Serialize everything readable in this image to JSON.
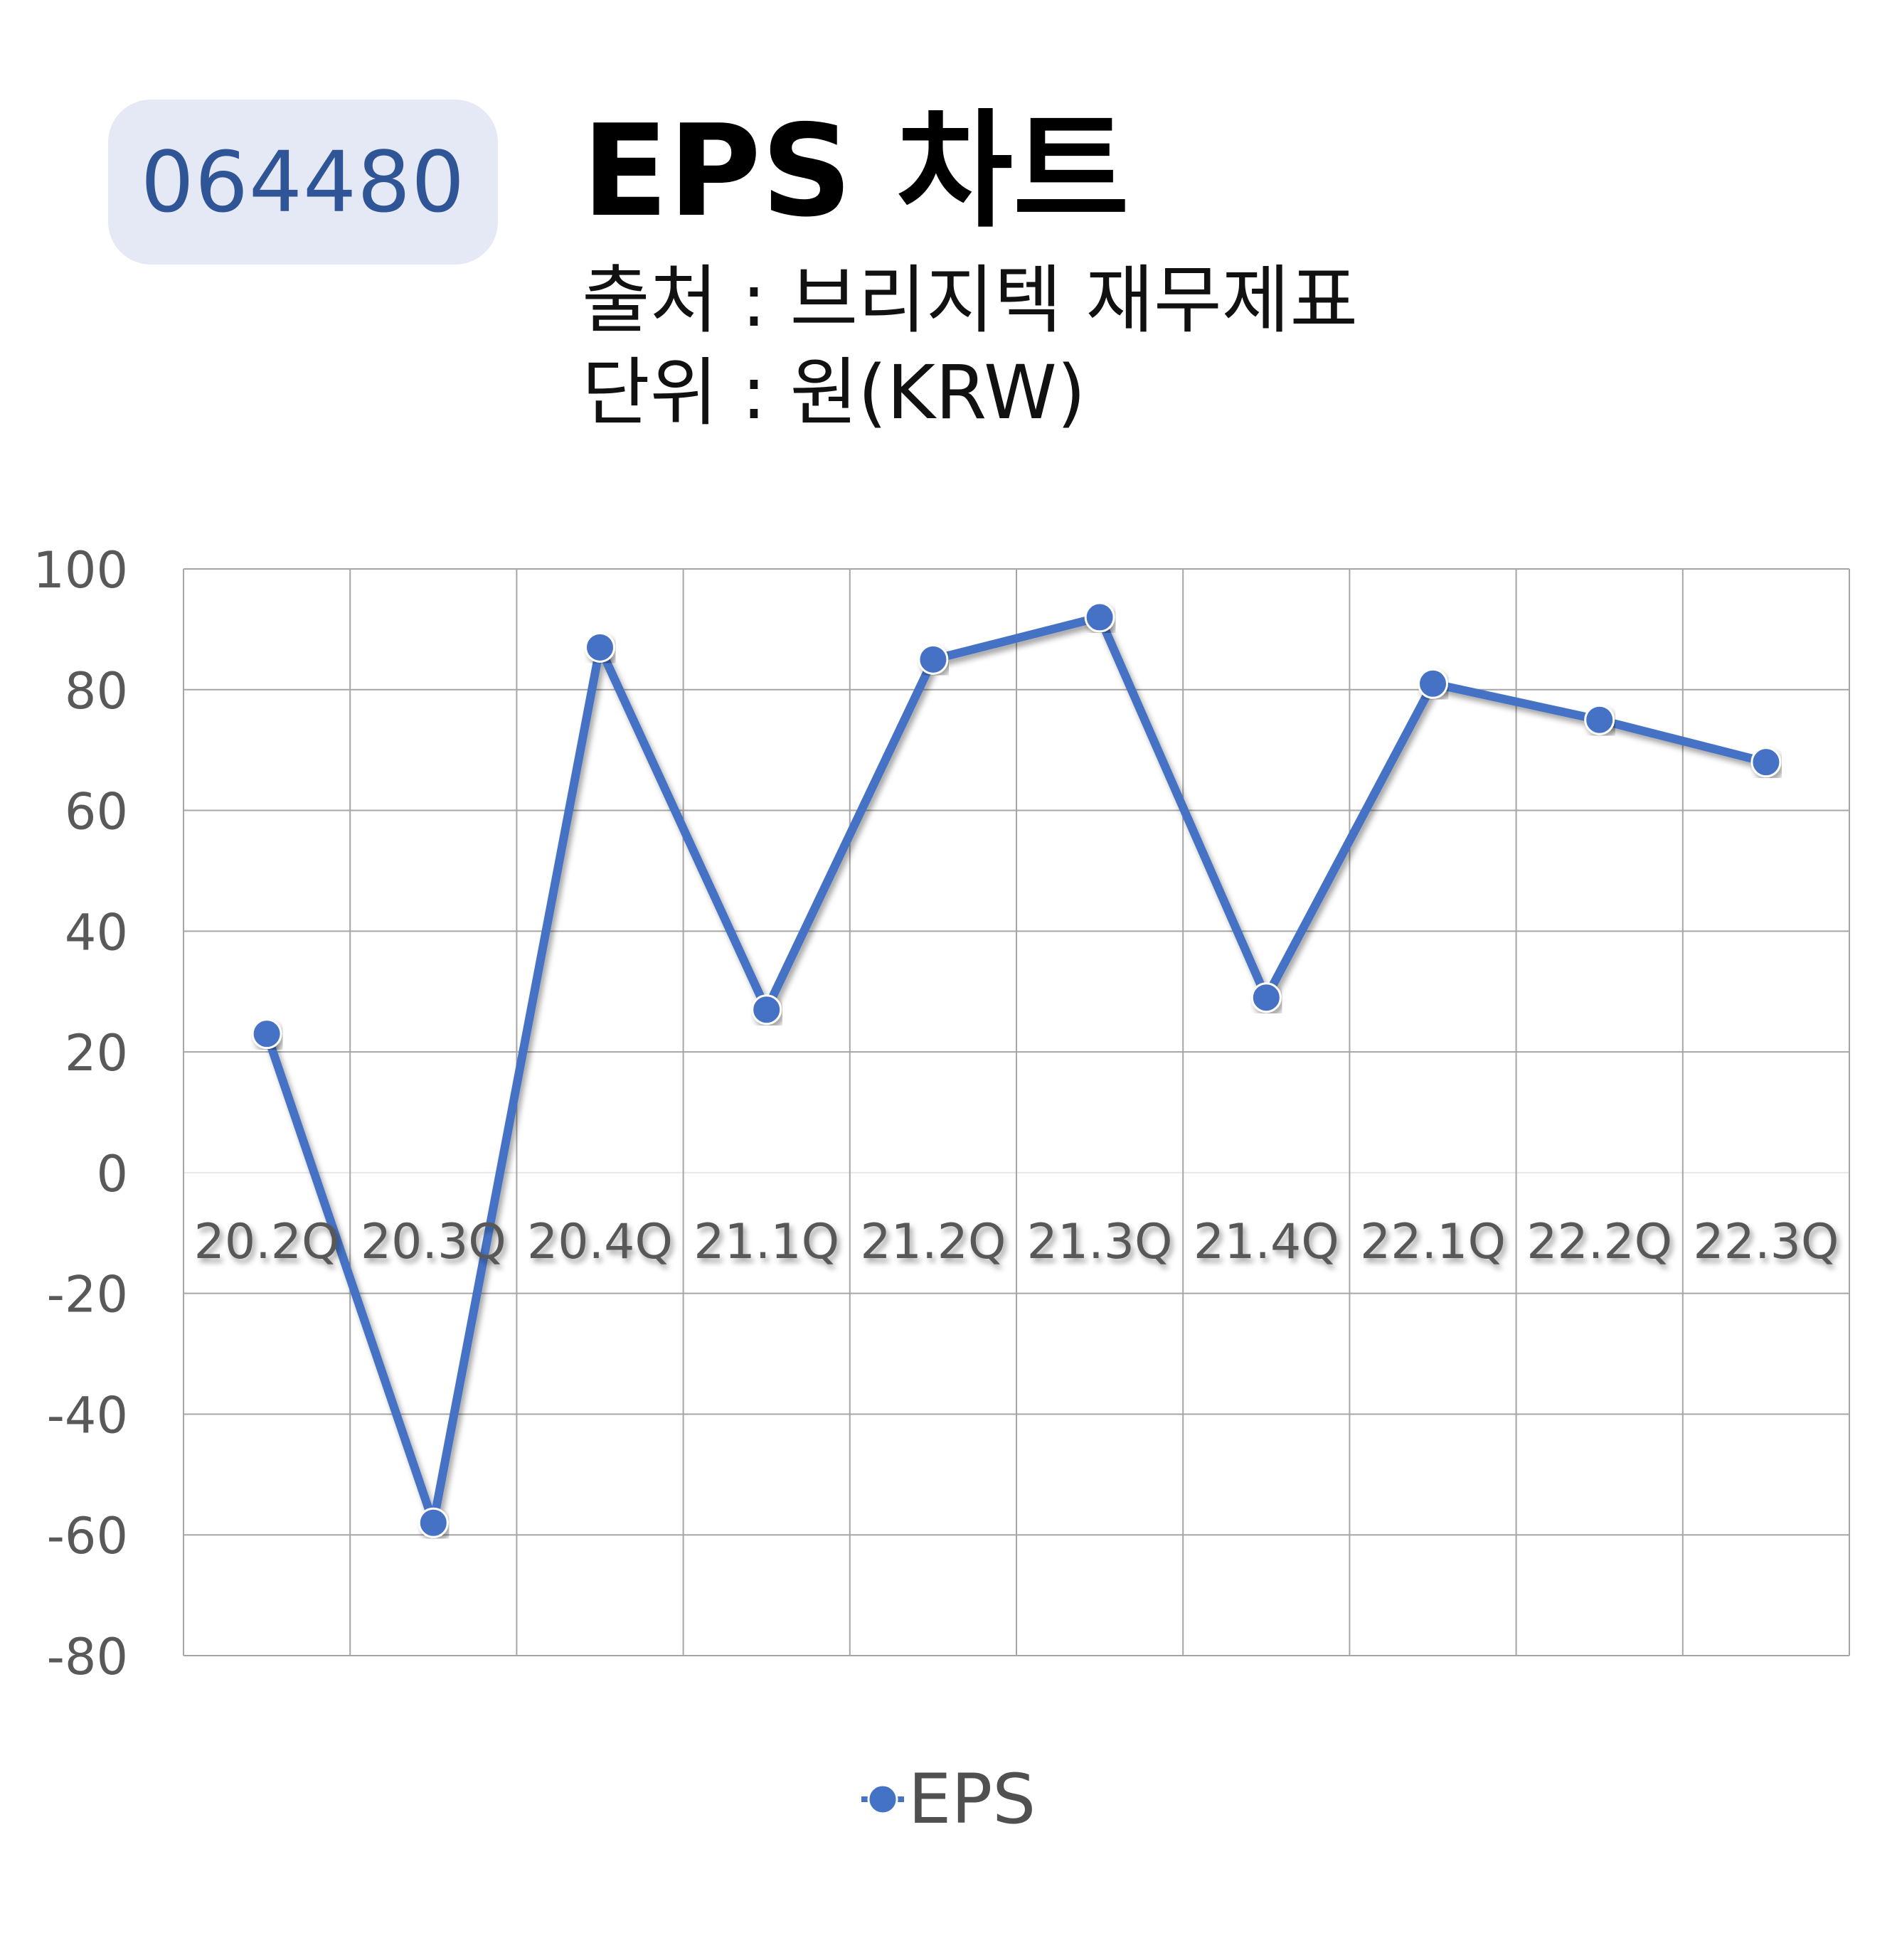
{
  "header": {
    "ticker": "064480",
    "title": "EPS 차트",
    "source": "출처 : 브리지텍 재무제표",
    "unit": "단위 : 원(KRW)"
  },
  "colors": {
    "series": "#4472c4",
    "badge_bg": "#e4e9f5",
    "badge_text": "#2f5597",
    "grid": "#a6a6a6",
    "axis_text": "#595959"
  },
  "chart_data": {
    "type": "line",
    "categories": [
      "20.2Q",
      "20.3Q",
      "20.4Q",
      "21.1Q",
      "21.2Q",
      "21.3Q",
      "21.4Q",
      "22.1Q",
      "22.2Q",
      "22.3Q"
    ],
    "series": [
      {
        "name": "EPS",
        "values": [
          23,
          -58,
          87,
          27,
          85,
          92,
          29,
          81,
          75,
          68
        ]
      }
    ],
    "ylim": [
      -80,
      100
    ],
    "yticks": [
      100,
      80,
      60,
      40,
      20,
      0,
      -20,
      -40,
      -60,
      -80
    ],
    "grid": true,
    "legend": "bottom"
  }
}
